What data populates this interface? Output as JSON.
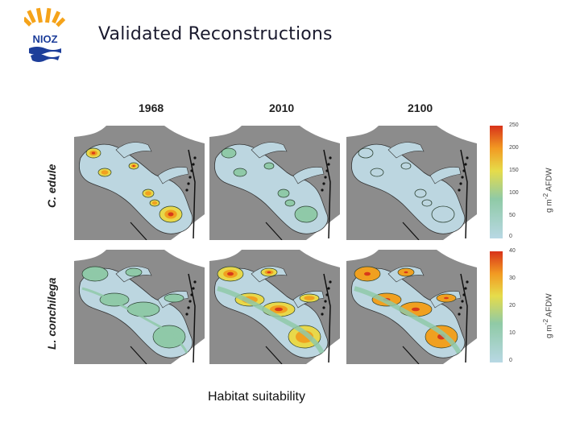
{
  "slide": {
    "title": "Validated Reconstructions",
    "caption": "Habitat suitability"
  },
  "logo": {
    "text": "NIOZ"
  },
  "figure": {
    "years": [
      "1968",
      "2010",
      "2100"
    ],
    "species": [
      "C. edule",
      "L. conchilega"
    ],
    "colorbars": [
      {
        "ticks": [
          "250",
          "200",
          "150",
          "100",
          "50",
          "0"
        ],
        "unit_prefix": "g m",
        "unit_exp": "-2",
        "unit_suffix": " AFDW"
      },
      {
        "ticks": [
          "40",
          "30",
          "20",
          "10",
          "0"
        ],
        "unit_prefix": "g m",
        "unit_exp": "-2",
        "unit_suffix": " AFDW"
      }
    ]
  },
  "colors": {
    "land": "#8c8c8c",
    "estuary": "#bcd6e0",
    "low": "#8fc9a8",
    "mid": "#e8d84a",
    "high": "#f0a020",
    "peak": "#d83a1a",
    "mask": "#ffffff"
  }
}
